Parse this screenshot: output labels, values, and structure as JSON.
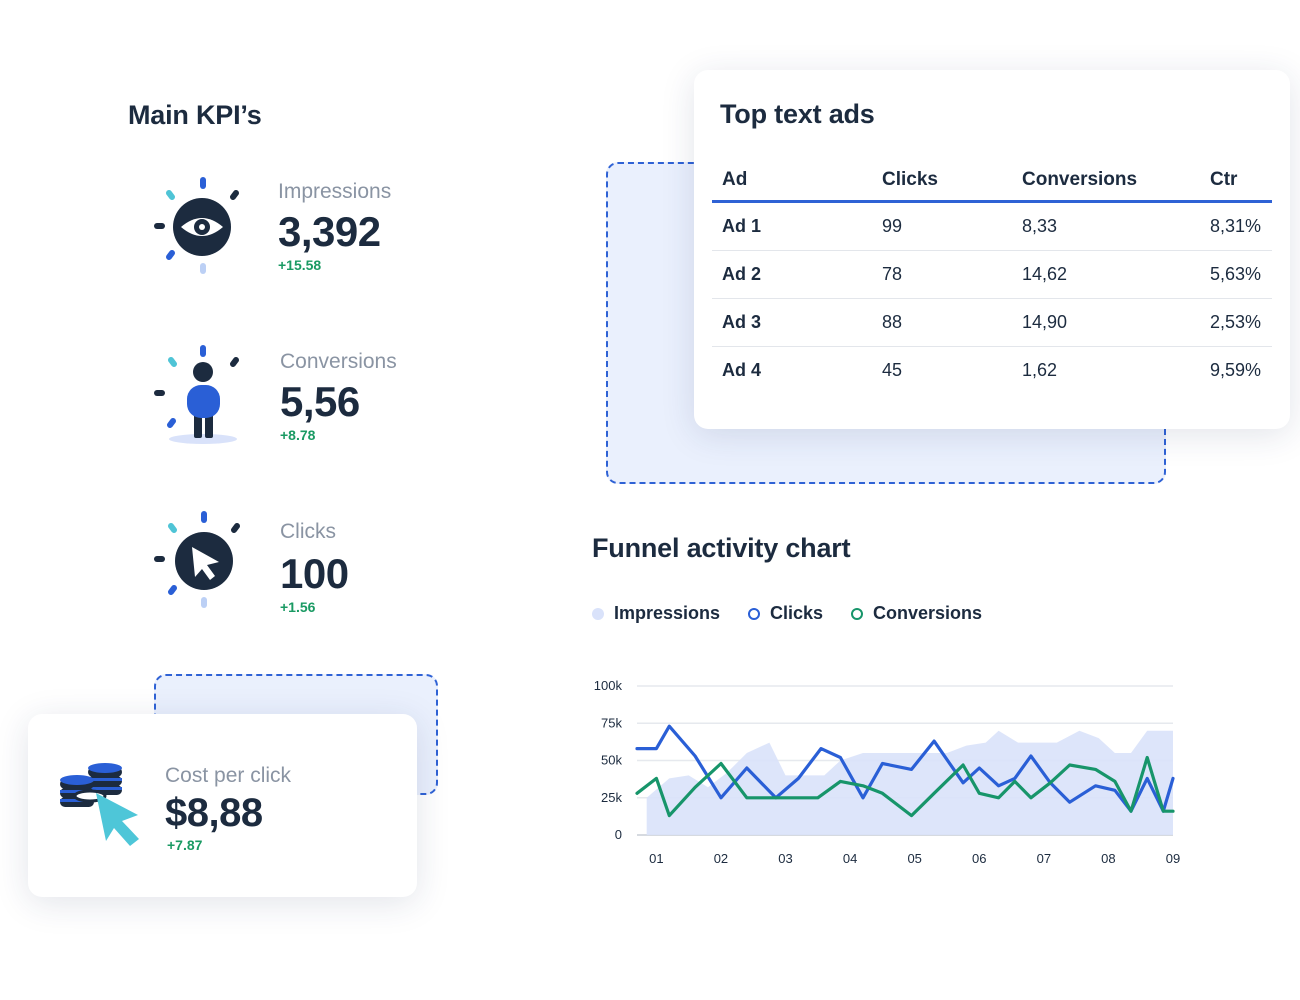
{
  "kpis": {
    "title": "Main KPI’s",
    "items": [
      {
        "label": "Impressions",
        "value": "3,392",
        "delta": "+15.58",
        "icon": "eye-icon"
      },
      {
        "label": "Conversions",
        "value": "5,56",
        "delta": "+8.78",
        "icon": "person-icon"
      },
      {
        "label": "Clicks",
        "value": "100",
        "delta": "+1.56",
        "icon": "cursor-icon"
      }
    ],
    "cpc": {
      "label": "Cost per click",
      "value": "$8,88",
      "delta": "+7.87",
      "icon": "coins-cursor-icon"
    }
  },
  "top_ads": {
    "title": "Top text ads",
    "columns": [
      "Ad",
      "Clicks",
      "Conversions",
      "Ctr"
    ],
    "rows": [
      [
        "Ad 1",
        "99",
        "8,33",
        "8,31%"
      ],
      [
        "Ad 2",
        "78",
        "14,62",
        "5,63%"
      ],
      [
        "Ad 3",
        "88",
        "14,90",
        "2,53%"
      ],
      [
        "Ad 4",
        "45",
        "1,62",
        "9,59%"
      ]
    ]
  },
  "funnel": {
    "title": "Funnel activity chart",
    "legend": [
      "Impressions",
      "Clicks",
      "Conversions"
    ]
  },
  "colors": {
    "impressions": "#d9e2fa",
    "clicks": "#2a5fd6",
    "conversions": "#17956a",
    "accent": "#2f62d5"
  },
  "chart_data": {
    "type": "line",
    "title": "Funnel activity chart",
    "x_tick_labels": [
      "01",
      "02",
      "03",
      "04",
      "05",
      "06",
      "07",
      "08",
      "09"
    ],
    "y_tick_labels": [
      "0",
      "25k",
      "50k",
      "75k",
      "100k"
    ],
    "ylim": [
      0,
      100000
    ],
    "xlim": [
      0.7,
      9.0
    ],
    "series": [
      {
        "name": "Impressions",
        "style": "area",
        "x": [
          0.85,
          1.2,
          1.5,
          1.8,
          2.1,
          2.4,
          2.75,
          3.0,
          3.25,
          3.6,
          3.85,
          4.2,
          4.5,
          4.85,
          5.2,
          5.5,
          5.8,
          6.1,
          6.3,
          6.6,
          6.85,
          7.2,
          7.55,
          7.85,
          8.1,
          8.35,
          8.6,
          8.85,
          9.0
        ],
        "y": [
          25000,
          38000,
          40000,
          32000,
          42000,
          55000,
          62000,
          40000,
          40000,
          40000,
          50000,
          55000,
          55000,
          55000,
          55000,
          55000,
          60000,
          62000,
          70000,
          62000,
          62000,
          62000,
          70000,
          65000,
          55000,
          55000,
          70000,
          70000,
          70000
        ]
      },
      {
        "name": "Clicks",
        "style": "line",
        "x": [
          0.7,
          1.0,
          1.2,
          1.6,
          2.0,
          2.4,
          2.85,
          3.2,
          3.55,
          3.85,
          4.2,
          4.5,
          4.95,
          5.3,
          5.75,
          6.0,
          6.3,
          6.55,
          6.8,
          7.1,
          7.4,
          7.8,
          8.1,
          8.35,
          8.6,
          8.85,
          9.0
        ],
        "y": [
          58000,
          58000,
          73000,
          53000,
          25000,
          45000,
          25000,
          38000,
          58000,
          52000,
          25000,
          48000,
          44000,
          63000,
          35000,
          45000,
          33000,
          38000,
          53000,
          35000,
          22000,
          33000,
          30000,
          16000,
          38000,
          16000,
          38000
        ]
      },
      {
        "name": "Conversions",
        "style": "line",
        "x": [
          0.7,
          1.0,
          1.2,
          1.6,
          2.0,
          2.4,
          2.9,
          3.5,
          3.85,
          4.2,
          4.5,
          4.95,
          5.3,
          5.75,
          6.0,
          6.3,
          6.55,
          6.8,
          7.1,
          7.4,
          7.8,
          8.1,
          8.35,
          8.6,
          8.85,
          9.0
        ],
        "y": [
          28000,
          38000,
          13000,
          32000,
          48000,
          25000,
          25000,
          25000,
          36000,
          33000,
          28000,
          13000,
          28000,
          47000,
          28000,
          25000,
          36000,
          25000,
          35000,
          47000,
          44000,
          36000,
          16000,
          52000,
          16000,
          16000
        ]
      }
    ]
  }
}
